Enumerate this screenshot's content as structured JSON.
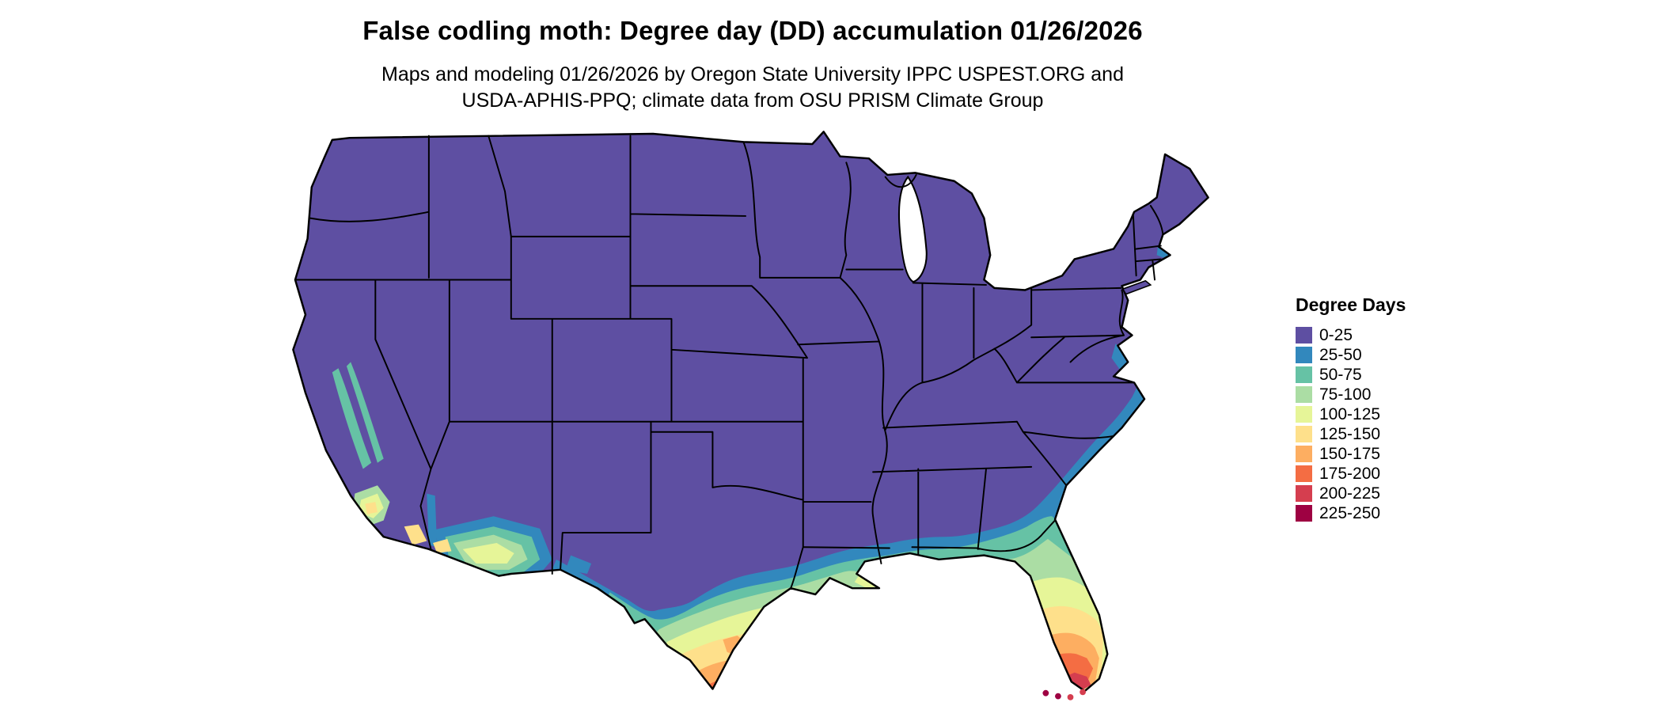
{
  "header": {
    "title": "False codling moth: Degree day (DD) accumulation 01/26/2026",
    "subtitle_line1": "Maps and modeling 01/26/2026 by Oregon State University IPPC USPEST.ORG and",
    "subtitle_line2": "USDA-APHIS-PPQ; climate data from OSU PRISM Climate Group"
  },
  "legend": {
    "title": "Degree Days",
    "items": [
      {
        "label": "0-25",
        "color": "#5e4fa2"
      },
      {
        "label": "25-50",
        "color": "#3288bd"
      },
      {
        "label": "50-75",
        "color": "#66c2a5"
      },
      {
        "label": "75-100",
        "color": "#abdda4"
      },
      {
        "label": "100-125",
        "color": "#e6f598"
      },
      {
        "label": "125-150",
        "color": "#fee08b"
      },
      {
        "label": "150-175",
        "color": "#fdae61"
      },
      {
        "label": "175-200",
        "color": "#f46d43"
      },
      {
        "label": "200-225",
        "color": "#d53e4f"
      },
      {
        "label": "225-250",
        "color": "#9e0142"
      }
    ]
  },
  "chart_data": {
    "type": "heatmap",
    "title": "False codling moth: Degree day (DD) accumulation 01/26/2026",
    "region": "Contiguous United States",
    "legend_title": "Degree Days",
    "bins": [
      "0-25",
      "25-50",
      "50-75",
      "75-100",
      "100-125",
      "125-150",
      "150-175",
      "175-200",
      "200-225",
      "225-250"
    ],
    "bin_colors": [
      "#5e4fa2",
      "#3288bd",
      "#66c2a5",
      "#abdda4",
      "#e6f598",
      "#fee08b",
      "#fdae61",
      "#f46d43",
      "#d53e4f",
      "#9e0142"
    ],
    "pattern": "Most of the contiguous US is in the 0-25 DD bin; values rise southward: 25-75 DD along the Gulf Coast, southern Georgia and the Carolina coast; 75-175 DD across south Texas peaking near its southern tip; 50-150 DD patches in southern California and southern Arizona; Florida grades from 50-75 DD in the north to 150-200 DD near the tip, with 200-250 DD at the Florida Keys."
  }
}
